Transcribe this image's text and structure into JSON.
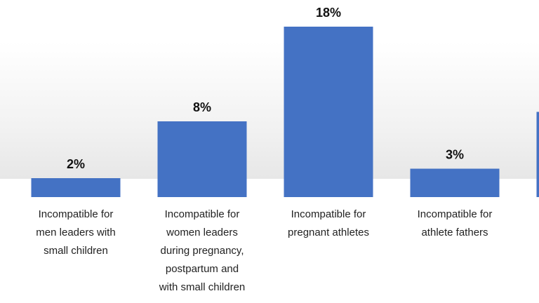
{
  "chart_data": {
    "type": "bar",
    "categories": [
      "Incompatible for\nmen leaders with\nsmall children",
      "Incompatible for\nwomen leaders\nduring pregnancy,\npostpartum and\nwith small children",
      "Incompatible for\npregnant athletes",
      "Incompatible for\nathlete fathers",
      null
    ],
    "values": [
      2,
      8,
      18,
      3,
      9
    ],
    "value_labels": [
      "2%",
      "8%",
      "18%",
      "3%",
      null
    ],
    "color": "#4472c4"
  }
}
